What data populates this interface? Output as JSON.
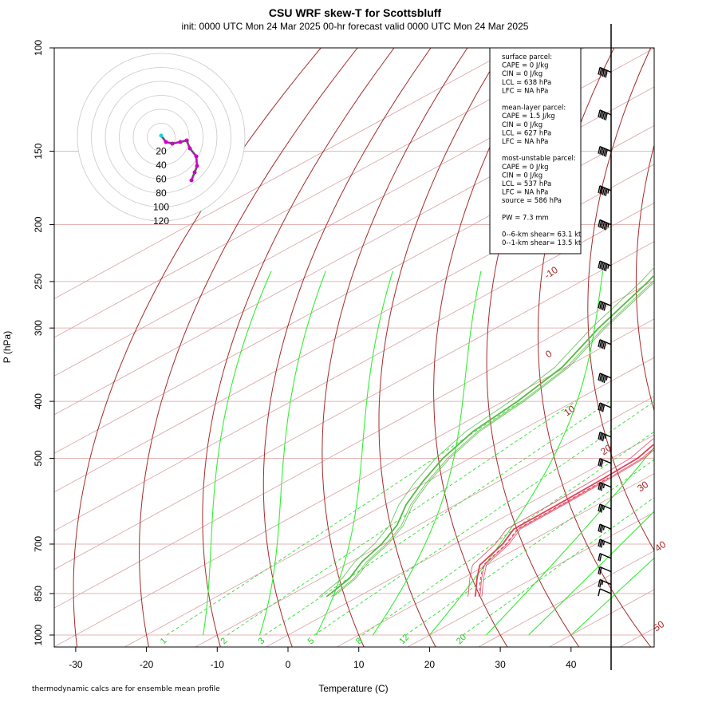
{
  "title": "CSU WRF skew-T for Scottsbluff",
  "subtitle": "init: 0000 UTC Mon 24 Mar 2025     00-hr forecast valid 0000 UTC Mon 24 Mar 2025",
  "footnote": "thermodynamic calcs are for ensemble mean profile",
  "info_box": [
    "surface parcel:",
    "CAPE = 0 J/kg",
    "CIN = 0 J/kg",
    "LCL = 638 hPa",
    "LFC = NA hPa",
    "",
    "mean-layer parcel:",
    "CAPE = 1.5 J/kg",
    "CIN = 0 J/kg",
    "LCL = 627 hPa",
    "LFC = NA hPa",
    "",
    "most-unstable parcel:",
    "CAPE = 0 J/kg",
    "CIN = 0 J/kg",
    "LCL = 537 hPa",
    "LFC = NA hPa",
    "source = 586 hPa",
    "",
    "PW =  7.3 mm",
    "",
    "0--6-km shear= 63.1 kt",
    "0--1-km shear= 13.5 kt"
  ],
  "hodograph_labels": [
    "20",
    "40",
    "60",
    "80",
    "100",
    "120"
  ],
  "colors": {
    "isotherm": "#d9a0a0",
    "dry_adiabat": "#a52a2a",
    "moist_adiabat": "#33ee33",
    "mixing_ratio": "#33dd33",
    "temperature": "#e0405a",
    "dewpoint": "#55bb44",
    "isobar": "#e3b5b5",
    "hodograph": "#cc00cc"
  },
  "chart_data": {
    "type": "skew-t",
    "xlabel": "Temperature (C)",
    "ylabel": "P (hPa)",
    "x_ticks": [
      -30,
      -20,
      -10,
      0,
      10,
      20,
      30,
      40
    ],
    "y_ticks": [
      100,
      150,
      200,
      250,
      300,
      400,
      500,
      700,
      850,
      1000
    ],
    "xlim": [
      -33,
      45
    ],
    "ylim": [
      1000,
      100
    ],
    "dry_adiabat_labels": [
      "-10",
      "0",
      "10",
      "20",
      "30",
      "40",
      "50"
    ],
    "mixing_ratio_labels": [
      "1",
      "2",
      "3",
      "5",
      "8",
      "12",
      "20"
    ],
    "temperature_profile": [
      {
        "p": 860,
        "t": 16.5
      },
      {
        "p": 850,
        "t": 15.8
      },
      {
        "p": 800,
        "t": 12.0
      },
      {
        "p": 760,
        "t": 9.0
      },
      {
        "p": 700,
        "t": 6.8
      },
      {
        "p": 660,
        "t": 4.5
      },
      {
        "p": 600,
        "t": 4.4
      },
      {
        "p": 540,
        "t": 4.1
      },
      {
        "p": 500,
        "t": 3.7
      },
      {
        "p": 470,
        "t": 2.2
      },
      {
        "p": 400,
        "t": -1.3
      },
      {
        "p": 350,
        "t": -4.8
      },
      {
        "p": 300,
        "t": -8.2
      },
      {
        "p": 270,
        "t": -12.5
      },
      {
        "p": 245,
        "t": -17.6
      },
      {
        "p": 210,
        "t": -25.0
      },
      {
        "p": 160,
        "t": -37.2
      },
      {
        "p": 150,
        "t": -41.8
      },
      {
        "p": 120,
        "t": -50.2
      },
      {
        "p": 112,
        "t": -51.0
      }
    ],
    "dewpoint_profile": [
      {
        "p": 860,
        "t": -4.5
      },
      {
        "p": 850,
        "t": -4.7
      },
      {
        "p": 800,
        "t": -6.0
      },
      {
        "p": 750,
        "t": -8.5
      },
      {
        "p": 700,
        "t": -10.3
      },
      {
        "p": 650,
        "t": -13.0
      },
      {
        "p": 600,
        "t": -17.0
      },
      {
        "p": 550,
        "t": -20.5
      },
      {
        "p": 500,
        "t": -23.8
      },
      {
        "p": 450,
        "t": -26.5
      },
      {
        "p": 400,
        "t": -28.0
      },
      {
        "p": 350,
        "t": -30.5
      },
      {
        "p": 300,
        "t": -35.5
      },
      {
        "p": 250,
        "t": -40.5
      },
      {
        "p": 200,
        "t": -47.8
      }
    ],
    "wind_barb_levels": [
      {
        "p": 110,
        "speed_kt": 60
      },
      {
        "p": 130,
        "speed_kt": 60
      },
      {
        "p": 150,
        "speed_kt": 60
      },
      {
        "p": 175,
        "speed_kt": 55
      },
      {
        "p": 200,
        "speed_kt": 55
      },
      {
        "p": 235,
        "speed_kt": 55
      },
      {
        "p": 275,
        "speed_kt": 50
      },
      {
        "p": 320,
        "speed_kt": 50
      },
      {
        "p": 365,
        "speed_kt": 45
      },
      {
        "p": 410,
        "speed_kt": 40
      },
      {
        "p": 460,
        "speed_kt": 35
      },
      {
        "p": 510,
        "speed_kt": 30
      },
      {
        "p": 560,
        "speed_kt": 25
      },
      {
        "p": 610,
        "speed_kt": 25
      },
      {
        "p": 660,
        "speed_kt": 25
      },
      {
        "p": 700,
        "speed_kt": 25
      },
      {
        "p": 740,
        "speed_kt": 20
      },
      {
        "p": 780,
        "speed_kt": 20
      },
      {
        "p": 820,
        "speed_kt": 15
      },
      {
        "p": 850,
        "speed_kt": 10
      }
    ]
  }
}
